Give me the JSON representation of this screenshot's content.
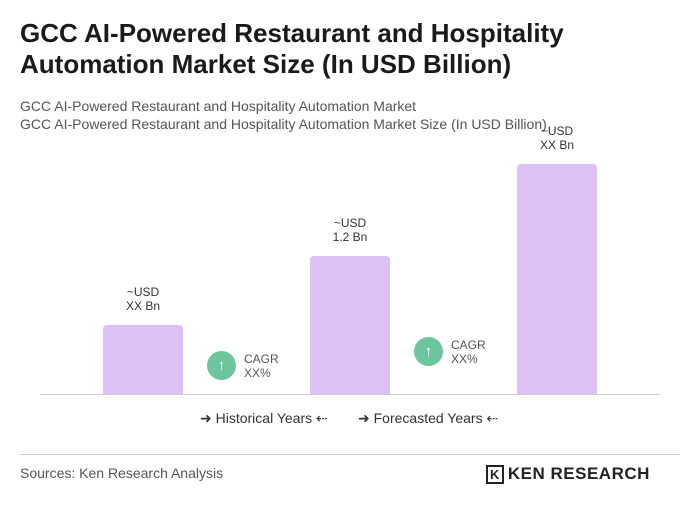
{
  "chart_data": {
    "type": "bar",
    "title": "GCC AI-Powered Restaurant and Hospitality Automation Market Size (In USD Billion)",
    "subtitle": [
      "GCC AI-Powered Restaurant and Hospitality Automation Market",
      "GCC AI-Powered Restaurant and Hospitality Automation Market Size (In USD Billion)"
    ],
    "values": [
      0.6,
      1.2,
      2.0
    ],
    "value_labels": [
      "~USD\nXX Bn",
      "~USD\n1.2 Bn",
      "~USD\nXX Bn"
    ],
    "color": "#dcc1f6",
    "annotations": [
      "CAGR\nXX%",
      "CAGR\nXX%"
    ],
    "legend": [
      "Historical Years",
      "Forecasted Years"
    ],
    "source": "Sources: Ken Research Analysis",
    "logo": "KEN RESEARCH"
  }
}
